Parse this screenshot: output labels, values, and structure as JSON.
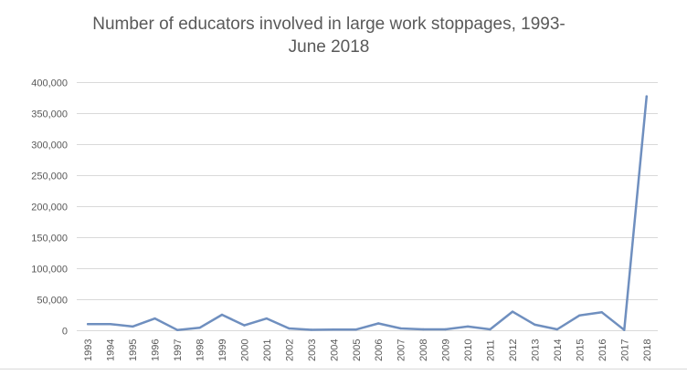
{
  "chart_data": {
    "type": "line",
    "title": "Number of educators involved in large work stoppages, 1993-\nJune 2018",
    "xlabel": "",
    "ylabel": "",
    "categories": [
      "1993",
      "1994",
      "1995",
      "1996",
      "1997",
      "1998",
      "1999",
      "2000",
      "2001",
      "2002",
      "2003",
      "2004",
      "2005",
      "2006",
      "2007",
      "2008",
      "2009",
      "2010",
      "2011",
      "2012",
      "2013",
      "2014",
      "2015",
      "2016",
      "2017",
      "2018"
    ],
    "series": [
      {
        "values": [
          10000,
          10000,
          6000,
          19000,
          500,
          4000,
          25000,
          8000,
          19000,
          3000,
          800,
          1000,
          1200,
          11000,
          3000,
          1500,
          1500,
          6000,
          1500,
          30000,
          9000,
          1500,
          24000,
          29000,
          500,
          377000
        ]
      }
    ],
    "ylim": [
      0,
      400000
    ],
    "y_ticks": [
      0,
      50000,
      100000,
      150000,
      200000,
      250000,
      300000,
      350000,
      400000
    ],
    "y_tick_labels": [
      "0",
      "50,000",
      "100,000",
      "150,000",
      "200,000",
      "250,000",
      "300,000",
      "350,000",
      "400,000"
    ],
    "grid": true,
    "legend": "none",
    "colors": {
      "line": "#6f8fbf",
      "gridline": "#d9d9d9",
      "axis_text": "#595959"
    }
  }
}
